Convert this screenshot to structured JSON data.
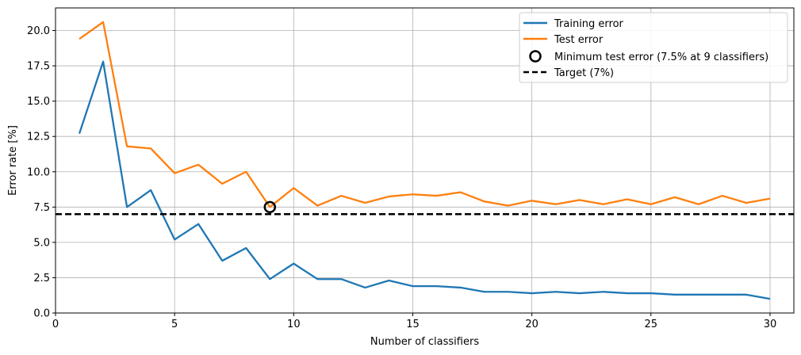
{
  "chart_data": {
    "type": "line",
    "title": "",
    "xlabel": "Number of classifiers",
    "ylabel": "Error rate [%]",
    "xlim": [
      0,
      31
    ],
    "ylim": [
      0,
      21.6
    ],
    "xticks": [
      0,
      5,
      10,
      15,
      20,
      25,
      30
    ],
    "yticks": [
      0.0,
      2.5,
      5.0,
      7.5,
      10.0,
      12.5,
      15.0,
      17.5,
      20.0
    ],
    "xtick_labels": [
      "0",
      "5",
      "10",
      "15",
      "20",
      "25",
      "30"
    ],
    "ytick_labels": [
      "0.0",
      "2.5",
      "5.0",
      "7.5",
      "10.0",
      "12.5",
      "15.0",
      "17.5",
      "20.0"
    ],
    "grid": true,
    "legend_position": "top-right",
    "x": [
      1,
      2,
      3,
      4,
      5,
      6,
      7,
      8,
      9,
      10,
      11,
      12,
      13,
      14,
      15,
      16,
      17,
      18,
      19,
      20,
      21,
      22,
      23,
      24,
      25,
      26,
      27,
      28,
      29,
      30
    ],
    "series": [
      {
        "name": "Training error",
        "color": "#1f77b4",
        "values": [
          12.7,
          17.8,
          7.5,
          8.7,
          5.2,
          6.3,
          3.7,
          4.6,
          2.4,
          3.5,
          2.4,
          2.4,
          1.8,
          2.3,
          1.9,
          1.9,
          1.8,
          1.5,
          1.5,
          1.4,
          1.5,
          1.4,
          1.5,
          1.4,
          1.4,
          1.3,
          1.3,
          1.3,
          1.3,
          1.0
        ]
      },
      {
        "name": "Test error",
        "color": "#ff7f0e",
        "values": [
          19.4,
          20.6,
          11.8,
          11.65,
          9.9,
          10.5,
          9.15,
          10.0,
          7.5,
          8.85,
          7.6,
          8.3,
          7.8,
          8.25,
          8.4,
          8.3,
          8.55,
          7.9,
          7.6,
          7.95,
          7.7,
          8.0,
          7.7,
          8.05,
          7.7,
          8.2,
          7.7,
          8.3,
          7.8,
          8.1
        ]
      }
    ],
    "marker": {
      "name": "Minimum test error (7.5% at 9 classifiers)",
      "x": 9,
      "y": 7.5,
      "color": "#000000"
    },
    "reference_line": {
      "name": "Target (7%)",
      "y": 7,
      "color": "#000000",
      "style": "dashed"
    }
  }
}
